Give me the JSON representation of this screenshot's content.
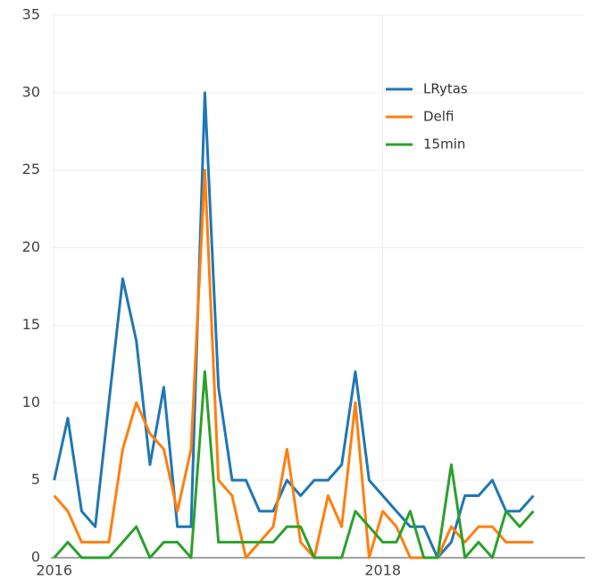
{
  "chart_data": {
    "type": "line",
    "x": [
      2016,
      2016.083,
      2016.167,
      2016.25,
      2016.333,
      2016.417,
      2016.5,
      2016.583,
      2016.667,
      2016.75,
      2016.833,
      2016.917,
      2017,
      2017.083,
      2017.167,
      2017.25,
      2017.333,
      2017.417,
      2017.5,
      2017.583,
      2017.667,
      2017.75,
      2017.833,
      2017.917,
      2018,
      2018.083,
      2018.167,
      2018.25,
      2018.333,
      2018.417,
      2018.5,
      2018.583,
      2018.667,
      2018.75,
      2018.833,
      2018.917
    ],
    "series": [
      {
        "name": "LRytas",
        "color": "#1f77b4",
        "values": [
          5,
          9,
          3,
          2,
          10,
          18,
          14,
          6,
          11,
          2,
          2,
          30,
          11,
          5,
          5,
          3,
          3,
          5,
          4,
          5,
          5,
          6,
          12,
          5,
          4,
          3,
          2,
          2,
          0,
          1,
          4,
          4,
          5,
          3,
          3,
          4
        ]
      },
      {
        "name": "Delfi",
        "color": "#ff7f0e",
        "values": [
          4,
          3,
          1,
          1,
          1,
          7,
          10,
          8,
          7,
          3,
          7,
          25,
          5,
          4,
          0,
          1,
          2,
          7,
          1,
          0,
          4,
          2,
          10,
          0,
          3,
          2,
          0,
          0,
          0,
          2,
          1,
          2,
          2,
          1,
          1,
          1
        ]
      },
      {
        "name": "15min",
        "color": "#2ca02c",
        "values": [
          0,
          1,
          0,
          0,
          0,
          1,
          2,
          0,
          1,
          1,
          0,
          12,
          1,
          1,
          1,
          1,
          1,
          2,
          2,
          0,
          0,
          0,
          3,
          2,
          1,
          1,
          3,
          0,
          0,
          6,
          0,
          1,
          0,
          3,
          2,
          3
        ]
      }
    ],
    "xlim": [
      2015.98,
      2019.23
    ],
    "xticks": [
      2016,
      2018
    ],
    "ylim": [
      0,
      35
    ],
    "yticks": [
      0,
      5,
      10,
      15,
      20,
      25,
      30,
      35
    ],
    "grid": true,
    "legend": "upper right"
  }
}
